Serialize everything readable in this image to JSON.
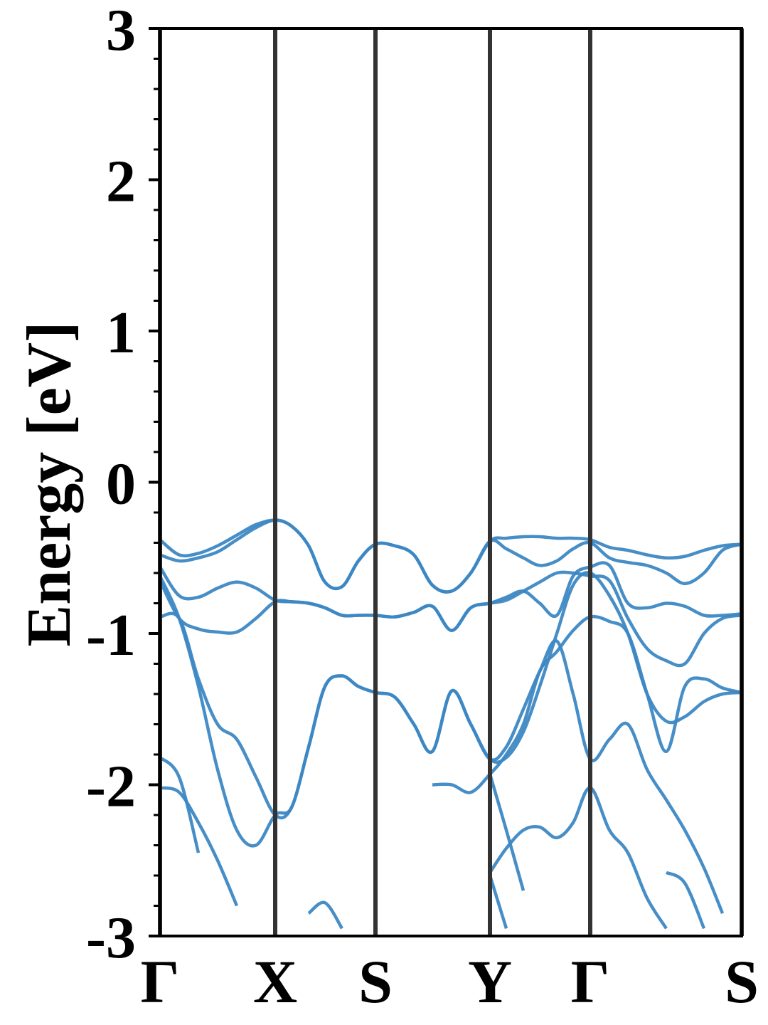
{
  "chart_data": {
    "type": "line",
    "ylabel": "Energy [eV]",
    "ylim": [
      -3,
      3
    ],
    "yticks": [
      -3,
      -2,
      -1,
      0,
      1,
      2,
      3
    ],
    "yminorticks": [
      -2.8,
      -2.6,
      -2.4,
      -2.2,
      -1.8,
      -1.6,
      -1.4,
      -1.2,
      -0.8,
      -0.6,
      -0.4,
      -0.2,
      0.2,
      0.4,
      0.6,
      0.8,
      1.2,
      1.4,
      1.6,
      1.8,
      2.2,
      2.4,
      2.6,
      2.8
    ],
    "xlim": [
      0,
      8.18
    ],
    "xticks": [
      {
        "value": 0,
        "label": "Γ"
      },
      {
        "value": 1.62,
        "label": "X"
      },
      {
        "value": 3.03,
        "label": "S"
      },
      {
        "value": 4.64,
        "label": "Y"
      },
      {
        "value": 6.05,
        "label": "Γ"
      },
      {
        "value": 8.18,
        "label": "S"
      }
    ],
    "x": [
      0,
      0.27,
      0.54,
      0.81,
      1.08,
      1.35,
      1.62,
      1.85,
      2.09,
      2.32,
      2.56,
      2.79,
      3.03,
      3.3,
      3.57,
      3.83,
      4.1,
      4.37,
      4.64,
      4.87,
      5.11,
      5.34,
      5.58,
      5.81,
      6.05,
      6.32,
      6.58,
      6.85,
      7.12,
      7.38,
      7.65,
      7.91,
      8.18
    ],
    "series": [
      {
        "color": "#3d88c4",
        "values": [
          -0.38,
          -0.48,
          -0.47,
          -0.42,
          -0.35,
          -0.28,
          -0.25,
          -0.29,
          -0.42,
          -0.66,
          -0.69,
          -0.52,
          -0.41,
          -0.42,
          -0.48,
          -0.68,
          -0.72,
          -0.6,
          -0.39,
          -0.37,
          -0.36,
          -0.36,
          -0.37,
          -0.37,
          -0.38,
          -0.43,
          -0.45,
          -0.48,
          -0.5,
          -0.49,
          -0.45,
          -0.42,
          -0.41
        ]
      },
      {
        "color": "#3d88c4",
        "values": [
          -0.48,
          -0.52,
          -0.5,
          -0.46,
          -0.38,
          -0.3,
          -0.25,
          -0.29,
          -0.42,
          -0.66,
          -0.69,
          -0.52,
          -0.41,
          -0.42,
          -0.48,
          -0.68,
          -0.72,
          -0.6,
          -0.39,
          -0.44,
          -0.5,
          -0.55,
          -0.52,
          -0.44,
          -0.4,
          -0.5,
          -0.53,
          -0.55,
          -0.6,
          -0.67,
          -0.6,
          -0.45,
          -0.41
        ]
      },
      {
        "color": "#3d88c4",
        "values": [
          -0.56,
          -0.75,
          -0.76,
          -0.7,
          -0.66,
          -0.7,
          -0.78,
          -0.79,
          -0.8,
          -0.83,
          -0.88,
          -0.88,
          -0.88,
          -0.89,
          -0.86,
          -0.82,
          -0.98,
          -0.83,
          -0.8,
          -0.76,
          -0.72,
          -0.8,
          -0.88,
          -0.62,
          -0.56,
          -0.55,
          -0.8,
          -0.83,
          -0.8,
          -0.82,
          -0.88,
          -0.88,
          -0.87
        ]
      },
      {
        "color": "#3d88c4",
        "values": [
          -0.65,
          -0.9,
          -0.97,
          -0.99,
          -0.99,
          -0.9,
          -0.79,
          -0.79,
          -0.8,
          -0.83,
          -0.88,
          -0.88,
          -0.88,
          -0.89,
          -0.86,
          -0.82,
          -0.98,
          -0.83,
          -0.8,
          -0.78,
          -0.72,
          -0.66,
          -0.6,
          -0.6,
          -0.62,
          -0.65,
          -0.9,
          -1.1,
          -1.18,
          -1.2,
          -1.0,
          -0.9,
          -0.88
        ]
      },
      {
        "color": "#3d88c4",
        "values": [
          -0.89,
          -0.9,
          -1.3,
          -1.6,
          -1.7,
          -1.95,
          -2.2,
          -2.15,
          -1.75,
          -1.35,
          -1.28,
          -1.35,
          -1.39,
          -1.42,
          -1.6,
          -1.78,
          -1.38,
          -1.6,
          -1.83,
          -1.75,
          -1.5,
          -1.25,
          -1.05,
          -1.4,
          -1.83,
          -1.7,
          -1.6,
          -1.9,
          -2.1,
          -2.3,
          -2.55,
          -2.85,
          null
        ]
      },
      {
        "color": "#3d88c4",
        "values": [
          -0.62,
          -0.9,
          -1.35,
          -1.9,
          -2.3,
          -2.4,
          -2.2,
          -2.15,
          -1.75,
          -1.35,
          -1.28,
          -1.35,
          -1.39,
          -1.42,
          -1.6,
          -1.78,
          -1.38,
          -1.6,
          -1.83,
          -1.82,
          -1.65,
          -1.35,
          -1.0,
          -0.68,
          -0.6,
          -0.75,
          -1.0,
          -1.4,
          -1.58,
          -1.55,
          -1.45,
          -1.4,
          -1.39
        ]
      },
      {
        "color": "#3d88c4",
        "values": [
          -1.82,
          -1.95,
          -2.45,
          null,
          null,
          null,
          null,
          null,
          -2.85,
          -2.78,
          -2.95,
          null,
          null,
          null,
          null,
          -2.0,
          -2.0,
          -2.05,
          -1.93,
          -1.8,
          -1.6,
          -1.25,
          -1.12,
          -0.98,
          -0.89,
          -0.92,
          -1.0,
          -1.4,
          -1.78,
          -1.35,
          -1.3,
          -1.36,
          -1.39
        ]
      },
      {
        "color": "#3d88c4",
        "values": [
          -2.02,
          -2.05,
          -2.25,
          -2.5,
          -2.8,
          null,
          null,
          null,
          null,
          null,
          null,
          null,
          null,
          null,
          null,
          null,
          null,
          null,
          -2.58,
          -2.42,
          -2.3,
          -2.28,
          -2.35,
          -2.25,
          -2.02,
          -2.3,
          -2.45,
          -2.75,
          -2.95,
          null,
          null,
          null,
          null
        ]
      },
      {
        "color": "#3d88c4",
        "values": [
          null,
          null,
          null,
          null,
          null,
          null,
          null,
          null,
          null,
          null,
          null,
          null,
          null,
          null,
          null,
          null,
          null,
          null,
          -1.93,
          -2.3,
          -2.7,
          null,
          null,
          null,
          null,
          null,
          null,
          null,
          -2.58,
          -2.65,
          -2.95,
          null,
          null
        ]
      },
      {
        "color": "#3d88c4",
        "values": [
          null,
          null,
          null,
          null,
          null,
          null,
          null,
          null,
          null,
          null,
          null,
          null,
          null,
          null,
          null,
          null,
          null,
          null,
          -2.6,
          -2.95,
          null,
          null,
          null,
          null,
          null,
          null,
          null,
          null,
          null,
          null,
          null,
          null,
          null
        ]
      }
    ]
  }
}
